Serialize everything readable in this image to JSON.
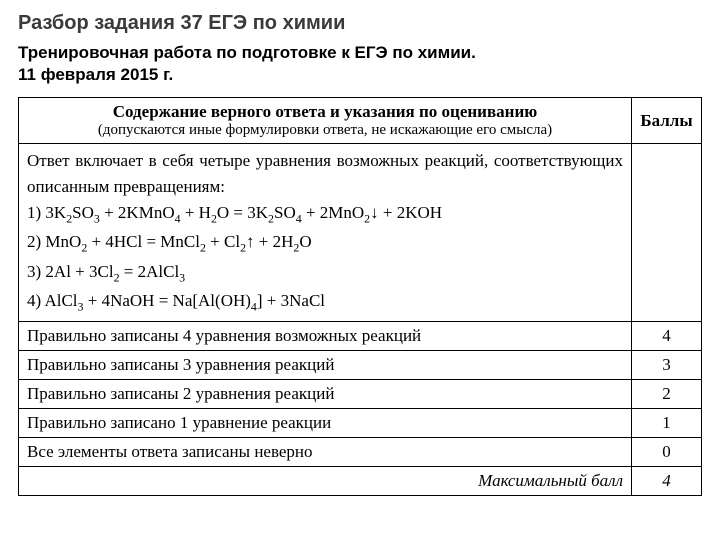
{
  "title": "Разбор задания 37 ЕГЭ по химии",
  "subtitle": "Тренировочная работа по подготовке к ЕГЭ по химии.",
  "date": "11 февраля 2015 г.",
  "table": {
    "header": {
      "main": "Содержание верного ответа и указания по оцениванию",
      "sub": "(допускаются иные формулировки ответа, не искажающие его смысла)",
      "score": "Баллы"
    },
    "answer_intro": "Ответ включает в себя четыре уравнения возможных реакций, соответствующих описанным превращениям:",
    "rows": [
      {
        "label": "Правильно записаны 4 уравнения возможных реакций",
        "score": "4"
      },
      {
        "label": "Правильно записаны 3 уравнения реакций",
        "score": "3"
      },
      {
        "label": "Правильно записаны 2 уравнения реакций",
        "score": "2"
      },
      {
        "label": "Правильно записано 1 уравнение реакции",
        "score": "1"
      },
      {
        "label": "Все элементы ответа записаны неверно",
        "score": "0"
      }
    ],
    "max": {
      "label": "Максимальный балл",
      "score": "4"
    }
  },
  "colors": {
    "title": "#3a3a3a",
    "text": "#000000",
    "border": "#000000",
    "background": "#ffffff"
  },
  "typography": {
    "title_fontsize": 20,
    "subtitle_fontsize": 17,
    "table_fontsize": 17,
    "table_sub_fontsize": 15
  }
}
